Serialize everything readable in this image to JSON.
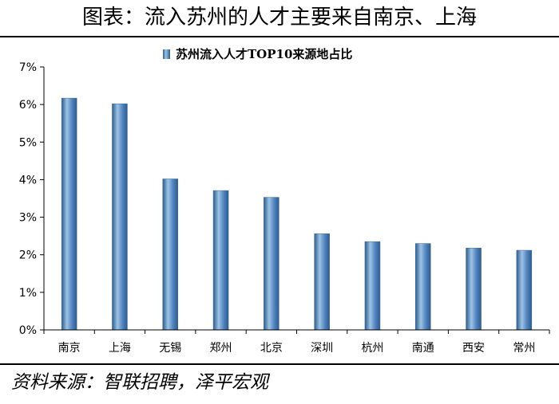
{
  "figure": {
    "title": "图表：流入苏州的人才主要来自南京、上海",
    "source": "资料来源：智联招聘，泽平宏观"
  },
  "chart_data": {
    "type": "bar",
    "title": "",
    "legend": "苏州流入人才TOP10来源地占比",
    "legend_position": "top-center",
    "categories": [
      "南京",
      "上海",
      "无锡",
      "郑州",
      "北京",
      "深圳",
      "杭州",
      "南通",
      "西安",
      "常州"
    ],
    "series": [
      {
        "name": "苏州流入人才TOP10来源地占比",
        "values": [
          6.17,
          6.02,
          4.02,
          3.71,
          3.53,
          2.56,
          2.35,
          2.3,
          2.18,
          2.12
        ]
      }
    ],
    "value_unit": "%",
    "ylim": [
      0,
      7
    ],
    "yticks": [
      "0%",
      "1%",
      "2%",
      "3%",
      "4%",
      "5%",
      "6%",
      "7%"
    ],
    "grid": false,
    "colors": {
      "bar_fill": "#4F81BD",
      "bar_highlight": "#9DC3E6",
      "bar_shadow": "#2E5C8A",
      "axis": "#000000"
    }
  }
}
